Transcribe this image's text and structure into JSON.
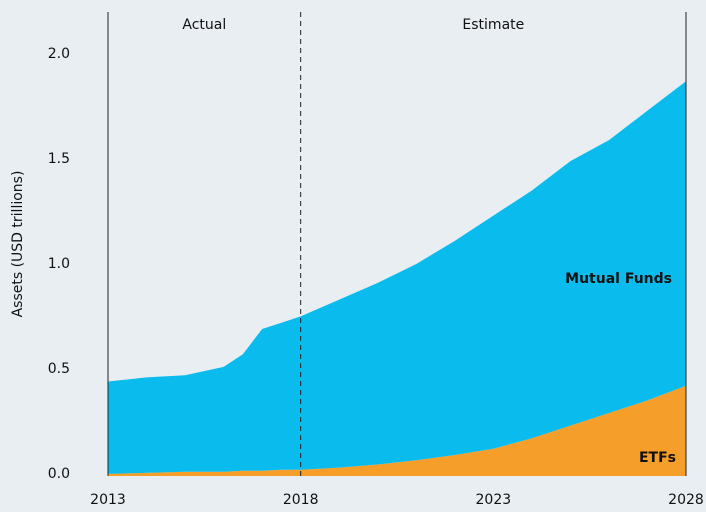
{
  "chart_data": {
    "type": "stacked_area",
    "ylabel": "Assets (USD trillions)",
    "x": [
      2013,
      2014,
      2015,
      2016,
      2016.5,
      2017,
      2017.5,
      2018,
      2019,
      2020,
      2021,
      2022,
      2023,
      2024,
      2025,
      2026,
      2027,
      2028
    ],
    "series": [
      {
        "name": "ETFs",
        "color": "#f59e2a",
        "values": [
          0.01,
          0.015,
          0.02,
          0.02,
          0.025,
          0.025,
          0.03,
          0.03,
          0.04,
          0.055,
          0.075,
          0.1,
          0.13,
          0.18,
          0.24,
          0.3,
          0.36,
          0.43
        ]
      },
      {
        "name": "Mutual Funds",
        "color": "#0abcee",
        "values": [
          0.44,
          0.455,
          0.46,
          0.5,
          0.555,
          0.675,
          0.7,
          0.73,
          0.8,
          0.865,
          0.935,
          1.02,
          1.11,
          1.18,
          1.26,
          1.3,
          1.38,
          1.45
        ]
      }
    ],
    "xlim": [
      2013,
      2028
    ],
    "xticks": [
      2013,
      2018,
      2023,
      2028
    ],
    "ylim": [
      0,
      2.21
    ],
    "yticks": [
      {
        "value": 0,
        "label": "0.0"
      },
      0.5,
      {
        "value": 1,
        "label": "1.0"
      },
      1.5,
      {
        "value": 2,
        "label": "2.0"
      }
    ],
    "divider_x": 2018,
    "annotations": [
      "Actual",
      "Estimate"
    ]
  }
}
